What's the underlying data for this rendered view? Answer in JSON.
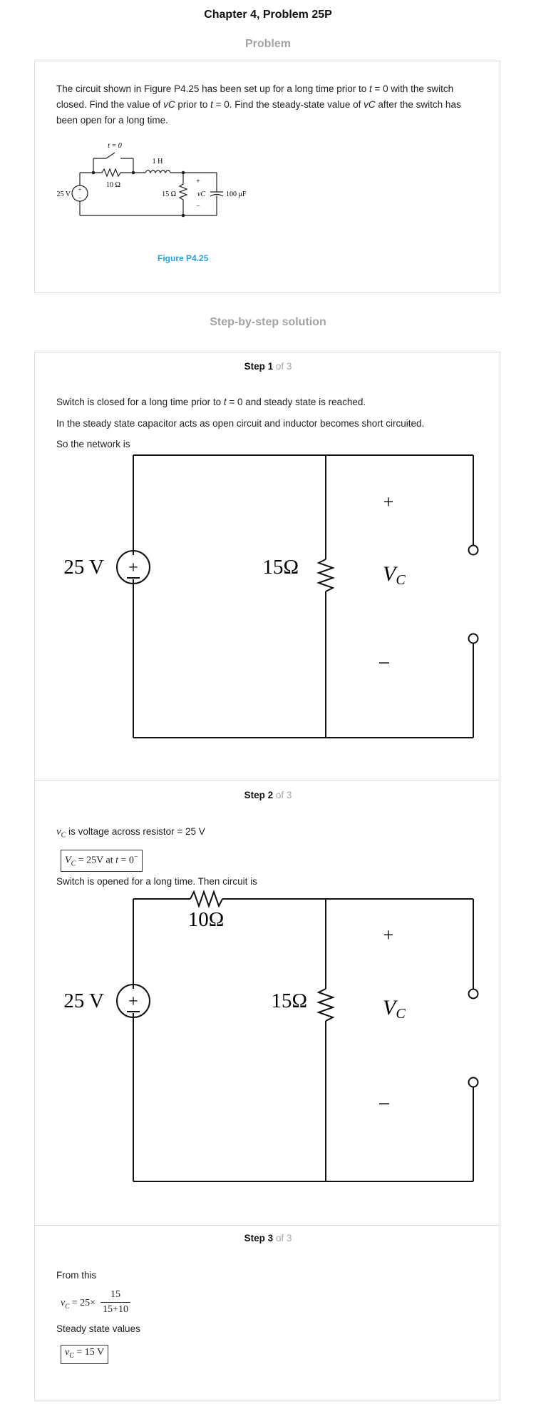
{
  "header": {
    "title": "Chapter 4, Problem 25P",
    "problem_heading": "Problem",
    "solution_heading": "Step-by-step solution"
  },
  "problem": {
    "text_1": "The circuit shown in Figure P4.25 has been set up for a long time prior to ",
    "t_var": "t",
    "text_2": " = 0 with the switch closed. Find the value of ",
    "vc_var": "vC",
    "text_3": " prior to ",
    "text_4": " = 0. Find the steady-state value of ",
    "text_5": " after the switch has been open for a long time.",
    "figure_caption": "Figure P4.25",
    "figure": {
      "switch_label": "t = 0",
      "inductor_label": "1 H",
      "r1_label": "10 Ω",
      "r2_label": "15 Ω",
      "source_label": "25 V",
      "vc_label": "vC",
      "cap_label": "100 μF",
      "plus": "+",
      "minus": "−"
    }
  },
  "steps": [
    {
      "label": "Step 1",
      "of": "of 3",
      "line1_a": "Switch is closed for a long time prior to ",
      "line1_t": "t",
      "line1_b": " = 0 and steady state is reached.",
      "line2": "In the steady state capacitor acts as open circuit and inductor becomes short circuited.",
      "line3": "So the network is",
      "diagram": {
        "source": "25 V",
        "resistor": "15Ω",
        "vc": "V",
        "vc_sub": "C",
        "plus": "+",
        "minus": "−"
      }
    },
    {
      "label": "Step 2",
      "of": "of 3",
      "vc_sym": "v",
      "vc_sub": "C",
      "line1": " is voltage across resistor = 25 V",
      "box_a": "V",
      "box_sub": "C",
      "box_b": " = 25V at ",
      "box_t": "t",
      "box_c": " = 0",
      "box_sup": "−",
      "line2": "Switch is opened for a long time. Then circuit is",
      "diagram": {
        "source": "25 V",
        "r_top": "10Ω",
        "resistor": "15Ω",
        "vc": "V",
        "vc_sub": "C",
        "plus": "+",
        "minus": "−"
      }
    },
    {
      "label": "Step 3",
      "of": "of 3",
      "line1": "From this",
      "eq_lhs": "v",
      "eq_sub": "C",
      "eq_mid": " = 25×",
      "eq_num": "15",
      "eq_den": "15+10",
      "line2": "Steady state values",
      "ans_a": "v",
      "ans_sub": "C",
      "ans_b": " = 15 V"
    }
  ]
}
